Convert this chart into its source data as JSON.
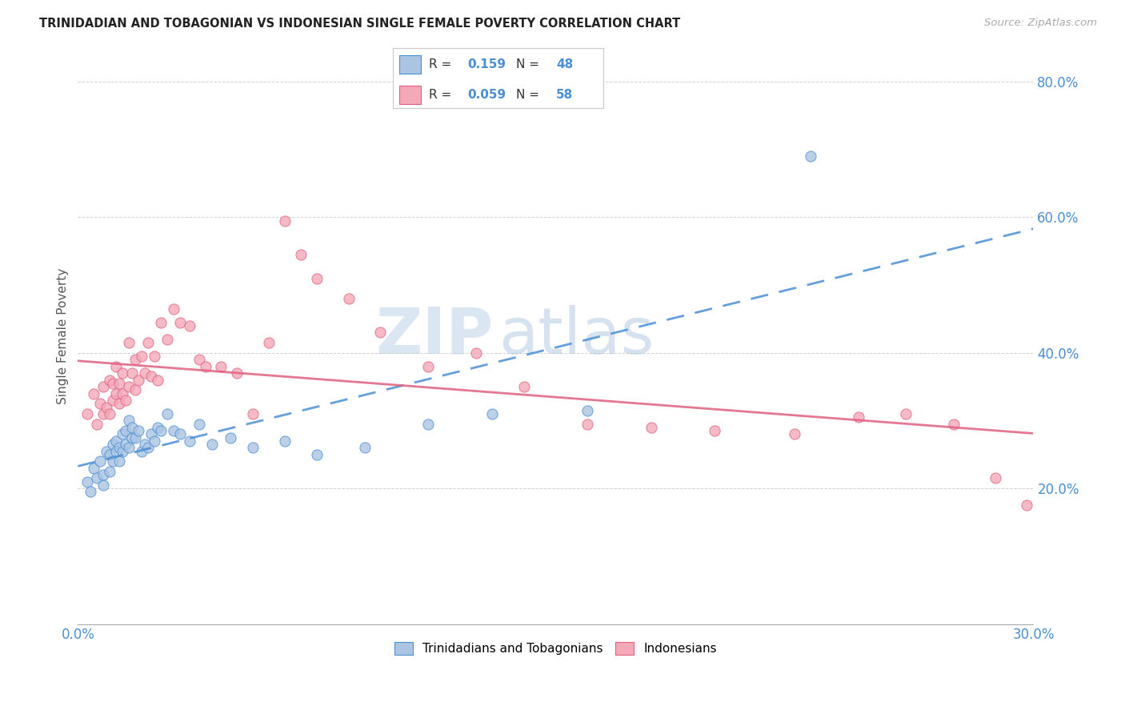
{
  "title": "TRINIDADIAN AND TOBAGONIAN VS INDONESIAN SINGLE FEMALE POVERTY CORRELATION CHART",
  "source": "Source: ZipAtlas.com",
  "ylabel": "Single Female Poverty",
  "legend_label1": "Trinidadians and Tobagonians",
  "legend_label2": "Indonesians",
  "R1": "0.159",
  "N1": "48",
  "R2": "0.059",
  "N2": "58",
  "xmin": 0.0,
  "xmax": 0.3,
  "ymin": 0.0,
  "ymax": 0.85,
  "color1": "#aac4e2",
  "color2": "#f4a8b8",
  "line1_color": "#4a8fd4",
  "line2_color": "#e06080",
  "title_color": "#222222",
  "source_color": "#aaaaaa",
  "axis_label_color": "#555555",
  "tick_color": "#4a8fd4",
  "watermark_zip": "ZIP",
  "watermark_atlas": "atlas",
  "xticks": [
    0.0,
    0.05,
    0.1,
    0.15,
    0.2,
    0.25,
    0.3
  ],
  "xtick_labels": [
    "0.0%",
    "",
    "",
    "",
    "",
    "",
    "30.0%"
  ],
  "ytick_positions": [
    0.0,
    0.2,
    0.4,
    0.6,
    0.8
  ],
  "ytick_labels": [
    "",
    "20.0%",
    "40.0%",
    "60.0%",
    "80.0%"
  ],
  "tri_x": [
    0.003,
    0.004,
    0.005,
    0.006,
    0.007,
    0.008,
    0.008,
    0.009,
    0.01,
    0.01,
    0.011,
    0.011,
    0.012,
    0.012,
    0.013,
    0.013,
    0.014,
    0.014,
    0.015,
    0.015,
    0.016,
    0.016,
    0.017,
    0.017,
    0.018,
    0.019,
    0.02,
    0.021,
    0.022,
    0.023,
    0.024,
    0.025,
    0.026,
    0.028,
    0.03,
    0.032,
    0.035,
    0.038,
    0.042,
    0.048,
    0.055,
    0.065,
    0.075,
    0.09,
    0.11,
    0.13,
    0.16,
    0.23
  ],
  "tri_y": [
    0.21,
    0.195,
    0.23,
    0.215,
    0.24,
    0.205,
    0.22,
    0.255,
    0.225,
    0.25,
    0.24,
    0.265,
    0.255,
    0.27,
    0.24,
    0.26,
    0.255,
    0.28,
    0.265,
    0.285,
    0.26,
    0.3,
    0.275,
    0.29,
    0.275,
    0.285,
    0.255,
    0.265,
    0.26,
    0.28,
    0.27,
    0.29,
    0.285,
    0.31,
    0.285,
    0.28,
    0.27,
    0.295,
    0.265,
    0.275,
    0.26,
    0.27,
    0.25,
    0.26,
    0.295,
    0.31,
    0.315,
    0.69
  ],
  "ind_x": [
    0.003,
    0.005,
    0.006,
    0.007,
    0.008,
    0.008,
    0.009,
    0.01,
    0.01,
    0.011,
    0.011,
    0.012,
    0.012,
    0.013,
    0.013,
    0.014,
    0.014,
    0.015,
    0.016,
    0.016,
    0.017,
    0.018,
    0.018,
    0.019,
    0.02,
    0.021,
    0.022,
    0.023,
    0.024,
    0.025,
    0.026,
    0.028,
    0.03,
    0.032,
    0.035,
    0.038,
    0.04,
    0.045,
    0.05,
    0.055,
    0.06,
    0.065,
    0.07,
    0.075,
    0.085,
    0.095,
    0.11,
    0.125,
    0.14,
    0.16,
    0.18,
    0.2,
    0.225,
    0.245,
    0.26,
    0.275,
    0.288,
    0.298
  ],
  "ind_y": [
    0.31,
    0.34,
    0.295,
    0.325,
    0.31,
    0.35,
    0.32,
    0.36,
    0.31,
    0.33,
    0.355,
    0.34,
    0.38,
    0.325,
    0.355,
    0.34,
    0.37,
    0.33,
    0.35,
    0.415,
    0.37,
    0.345,
    0.39,
    0.36,
    0.395,
    0.37,
    0.415,
    0.365,
    0.395,
    0.36,
    0.445,
    0.42,
    0.465,
    0.445,
    0.44,
    0.39,
    0.38,
    0.38,
    0.37,
    0.31,
    0.415,
    0.595,
    0.545,
    0.51,
    0.48,
    0.43,
    0.38,
    0.4,
    0.35,
    0.295,
    0.29,
    0.285,
    0.28,
    0.305,
    0.31,
    0.295,
    0.215,
    0.175
  ]
}
